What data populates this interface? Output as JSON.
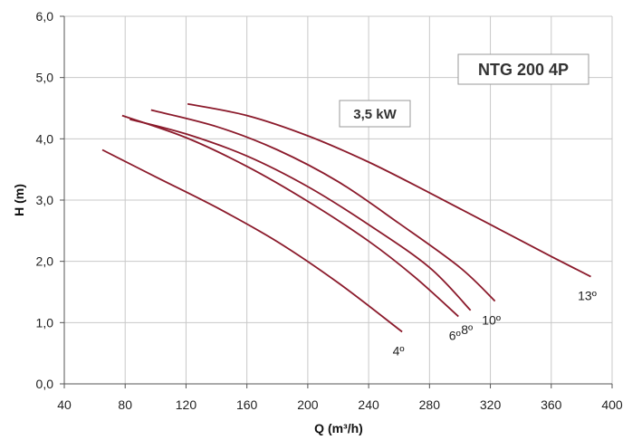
{
  "chart_data": {
    "type": "line",
    "title": "",
    "xlabel": "Q (m³/h)",
    "ylabel": "H (m)",
    "xlim": [
      40,
      400
    ],
    "ylim": [
      0,
      6
    ],
    "x_ticks": [
      "40",
      "80",
      "120",
      "160",
      "200",
      "240",
      "280",
      "320",
      "360",
      "400"
    ],
    "y_ticks": [
      "0,0",
      "1,0",
      "2,0",
      "3,0",
      "4,0",
      "5,0",
      "6,0"
    ],
    "grid": true,
    "colors": {
      "curve": "#8b1a2b",
      "grid": "#c8c8c8",
      "axis": "#555555"
    },
    "annotations": {
      "model": "NTG 200 4P",
      "power": "3,5 kW"
    },
    "series": [
      {
        "name": "4º",
        "points": [
          [
            65,
            3.82
          ],
          [
            100,
            3.38
          ],
          [
            140,
            2.88
          ],
          [
            180,
            2.32
          ],
          [
            220,
            1.65
          ],
          [
            262,
            0.85
          ]
        ]
      },
      {
        "name": "6º",
        "points": [
          [
            78,
            4.38
          ],
          [
            120,
            4.02
          ],
          [
            160,
            3.55
          ],
          [
            200,
            2.98
          ],
          [
            240,
            2.33
          ],
          [
            270,
            1.75
          ],
          [
            299,
            1.1
          ]
        ]
      },
      {
        "name": "8º",
        "points": [
          [
            83,
            4.32
          ],
          [
            120,
            4.08
          ],
          [
            160,
            3.72
          ],
          [
            200,
            3.22
          ],
          [
            240,
            2.6
          ],
          [
            280,
            1.9
          ],
          [
            307,
            1.2
          ]
        ]
      },
      {
        "name": "10º",
        "points": [
          [
            97,
            4.47
          ],
          [
            140,
            4.2
          ],
          [
            180,
            3.82
          ],
          [
            220,
            3.3
          ],
          [
            260,
            2.62
          ],
          [
            300,
            1.9
          ],
          [
            323,
            1.35
          ]
        ]
      },
      {
        "name": "13º",
        "points": [
          [
            121,
            4.57
          ],
          [
            160,
            4.38
          ],
          [
            200,
            4.05
          ],
          [
            240,
            3.62
          ],
          [
            280,
            3.12
          ],
          [
            320,
            2.6
          ],
          [
            360,
            2.08
          ],
          [
            386,
            1.75
          ]
        ]
      }
    ]
  }
}
